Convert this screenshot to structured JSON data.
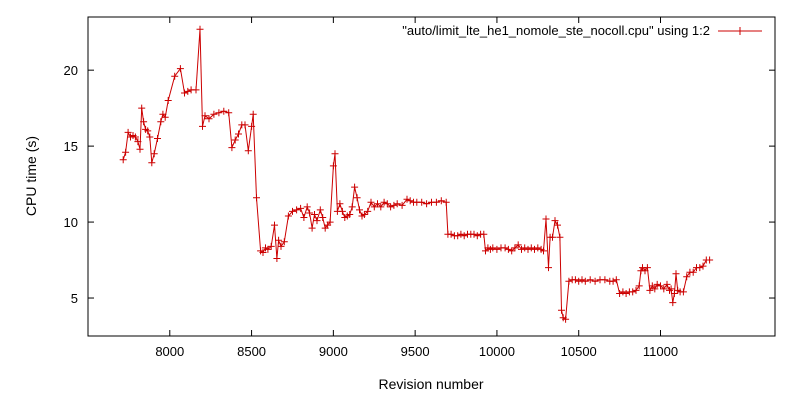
{
  "chart_data": {
    "type": "line",
    "xlabel": "Revision number",
    "ylabel": "CPU time (s)",
    "xlim": [
      7500,
      11700
    ],
    "ylim": [
      2.5,
      23.5
    ],
    "x_ticks": [
      8000,
      8500,
      9000,
      9500,
      10000,
      10500,
      11000
    ],
    "y_ticks": [
      5,
      10,
      15,
      20
    ],
    "grid": false,
    "legend_position": "top-right",
    "series": [
      {
        "name": "\"auto/limit_lte_he1_nomole_ste_nocoll.cpu\" using 1:2",
        "color": "#cc0000",
        "marker": "plus",
        "points": [
          [
            7715,
            14.1
          ],
          [
            7730,
            14.6
          ],
          [
            7745,
            15.9
          ],
          [
            7760,
            15.6
          ],
          [
            7775,
            15.7
          ],
          [
            7790,
            15.6
          ],
          [
            7805,
            15.3
          ],
          [
            7818,
            14.8
          ],
          [
            7828,
            17.5
          ],
          [
            7840,
            16.6
          ],
          [
            7852,
            16.1
          ],
          [
            7865,
            16.0
          ],
          [
            7878,
            15.6
          ],
          [
            7890,
            13.9
          ],
          [
            7905,
            14.5
          ],
          [
            7925,
            15.5
          ],
          [
            7945,
            16.6
          ],
          [
            7958,
            17.1
          ],
          [
            7972,
            16.9
          ],
          [
            7990,
            18.0
          ],
          [
            8030,
            19.6
          ],
          [
            8065,
            20.1
          ],
          [
            8090,
            18.5
          ],
          [
            8110,
            18.6
          ],
          [
            8130,
            18.7
          ],
          [
            8160,
            18.7
          ],
          [
            8185,
            22.7
          ],
          [
            8200,
            16.3
          ],
          [
            8215,
            17.0
          ],
          [
            8240,
            16.8
          ],
          [
            8270,
            17.1
          ],
          [
            8300,
            17.2
          ],
          [
            8330,
            17.3
          ],
          [
            8360,
            17.2
          ],
          [
            8380,
            14.9
          ],
          [
            8400,
            15.4
          ],
          [
            8420,
            15.8
          ],
          [
            8440,
            16.4
          ],
          [
            8460,
            16.4
          ],
          [
            8480,
            14.7
          ],
          [
            8500,
            16.3
          ],
          [
            8510,
            17.1
          ],
          [
            8530,
            11.6
          ],
          [
            8555,
            8.1
          ],
          [
            8570,
            8.0
          ],
          [
            8585,
            8.3
          ],
          [
            8600,
            8.2
          ],
          [
            8620,
            8.4
          ],
          [
            8640,
            9.8
          ],
          [
            8655,
            7.6
          ],
          [
            8665,
            8.8
          ],
          [
            8680,
            8.4
          ],
          [
            8700,
            8.7
          ],
          [
            8725,
            10.4
          ],
          [
            8750,
            10.7
          ],
          [
            8775,
            10.8
          ],
          [
            8800,
            10.9
          ],
          [
            8820,
            10.3
          ],
          [
            8840,
            11.0
          ],
          [
            8855,
            10.6
          ],
          [
            8870,
            9.6
          ],
          [
            8885,
            10.5
          ],
          [
            8900,
            10.1
          ],
          [
            8920,
            10.8
          ],
          [
            8935,
            10.3
          ],
          [
            8950,
            9.6
          ],
          [
            8965,
            9.8
          ],
          [
            8980,
            10.0
          ],
          [
            9000,
            13.7
          ],
          [
            9010,
            14.5
          ],
          [
            9025,
            10.7
          ],
          [
            9040,
            11.2
          ],
          [
            9055,
            10.7
          ],
          [
            9070,
            10.3
          ],
          [
            9085,
            10.4
          ],
          [
            9100,
            10.5
          ],
          [
            9115,
            11.0
          ],
          [
            9130,
            12.3
          ],
          [
            9145,
            11.6
          ],
          [
            9160,
            10.8
          ],
          [
            9175,
            10.4
          ],
          [
            9190,
            10.5
          ],
          [
            9210,
            10.7
          ],
          [
            9230,
            11.3
          ],
          [
            9250,
            11.0
          ],
          [
            9270,
            11.2
          ],
          [
            9290,
            11.0
          ],
          [
            9310,
            11.3
          ],
          [
            9330,
            11.2
          ],
          [
            9350,
            11.0
          ],
          [
            9370,
            11.1
          ],
          [
            9390,
            11.2
          ],
          [
            9420,
            11.1
          ],
          [
            9450,
            11.5
          ],
          [
            9470,
            11.4
          ],
          [
            9490,
            11.3
          ],
          [
            9510,
            11.3
          ],
          [
            9540,
            11.3
          ],
          [
            9570,
            11.2
          ],
          [
            9600,
            11.3
          ],
          [
            9630,
            11.3
          ],
          [
            9660,
            11.4
          ],
          [
            9690,
            11.3
          ],
          [
            9700,
            9.2
          ],
          [
            9720,
            9.2
          ],
          [
            9740,
            9.1
          ],
          [
            9760,
            9.1
          ],
          [
            9780,
            9.2
          ],
          [
            9800,
            9.1
          ],
          [
            9820,
            9.2
          ],
          [
            9840,
            9.2
          ],
          [
            9860,
            9.2
          ],
          [
            9880,
            9.1
          ],
          [
            9900,
            9.2
          ],
          [
            9920,
            9.2
          ],
          [
            9930,
            8.1
          ],
          [
            9945,
            8.3
          ],
          [
            9960,
            8.2
          ],
          [
            9975,
            8.3
          ],
          [
            10000,
            8.2
          ],
          [
            10025,
            8.3
          ],
          [
            10050,
            8.3
          ],
          [
            10070,
            8.2
          ],
          [
            10090,
            8.1
          ],
          [
            10110,
            8.3
          ],
          [
            10130,
            8.5
          ],
          [
            10150,
            8.2
          ],
          [
            10170,
            8.3
          ],
          [
            10190,
            8.2
          ],
          [
            10210,
            8.3
          ],
          [
            10230,
            8.2
          ],
          [
            10250,
            8.3
          ],
          [
            10270,
            8.2
          ],
          [
            10285,
            8.1
          ],
          [
            10300,
            10.2
          ],
          [
            10315,
            7.0
          ],
          [
            10325,
            9.0
          ],
          [
            10340,
            9.0
          ],
          [
            10355,
            10.1
          ],
          [
            10370,
            9.8
          ],
          [
            10385,
            9.0
          ],
          [
            10395,
            4.2
          ],
          [
            10405,
            3.7
          ],
          [
            10420,
            3.6
          ],
          [
            10440,
            6.1
          ],
          [
            10460,
            6.2
          ],
          [
            10480,
            6.2
          ],
          [
            10500,
            6.1
          ],
          [
            10520,
            6.2
          ],
          [
            10540,
            6.1
          ],
          [
            10570,
            6.2
          ],
          [
            10600,
            6.1
          ],
          [
            10630,
            6.2
          ],
          [
            10660,
            6.2
          ],
          [
            10690,
            6.1
          ],
          [
            10710,
            6.1
          ],
          [
            10730,
            6.2
          ],
          [
            10750,
            5.3
          ],
          [
            10770,
            5.4
          ],
          [
            10790,
            5.3
          ],
          [
            10810,
            5.4
          ],
          [
            10830,
            5.4
          ],
          [
            10850,
            5.5
          ],
          [
            10870,
            5.8
          ],
          [
            10880,
            6.8
          ],
          [
            10890,
            7.0
          ],
          [
            10905,
            6.8
          ],
          [
            10920,
            7.0
          ],
          [
            10935,
            5.5
          ],
          [
            10950,
            5.8
          ],
          [
            10965,
            5.6
          ],
          [
            10980,
            5.9
          ],
          [
            11000,
            5.8
          ],
          [
            11020,
            5.6
          ],
          [
            11040,
            5.9
          ],
          [
            11055,
            5.5
          ],
          [
            11065,
            5.6
          ],
          [
            11075,
            4.7
          ],
          [
            11085,
            5.3
          ],
          [
            11095,
            6.6
          ],
          [
            11105,
            5.5
          ],
          [
            11120,
            5.4
          ],
          [
            11140,
            5.4
          ],
          [
            11160,
            6.4
          ],
          [
            11180,
            6.7
          ],
          [
            11200,
            6.7
          ],
          [
            11220,
            7.0
          ],
          [
            11240,
            7.0
          ],
          [
            11260,
            7.1
          ],
          [
            11280,
            7.5
          ],
          [
            11300,
            7.5
          ]
        ]
      }
    ]
  }
}
